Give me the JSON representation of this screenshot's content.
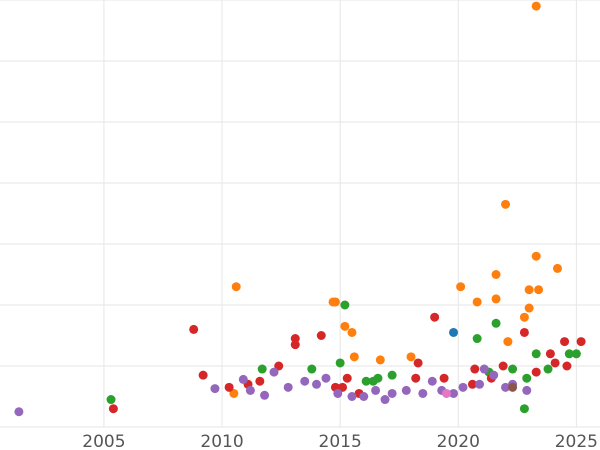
{
  "chart_data": {
    "type": "scatter",
    "title": "",
    "xlabel": "",
    "ylabel": "",
    "xlim": [
      2000.6,
      2026.0
    ],
    "ylim": [
      0,
      7
    ],
    "grid": true,
    "legend": "none",
    "x_ticks": [
      2005,
      2010,
      2015,
      2020,
      2025
    ],
    "x_tick_labels": [
      "2005",
      "2010",
      "2015",
      "2020",
      "2025"
    ],
    "y_ticks": [
      0,
      1,
      2,
      3,
      4,
      5,
      6,
      7
    ],
    "y_tick_labels": [],
    "series": [
      {
        "color": "#ff7f0e",
        "points": [
          [
            2010.5,
            0.55
          ],
          [
            2010.6,
            2.3
          ],
          [
            2014.7,
            2.05
          ],
          [
            2014.8,
            2.05
          ],
          [
            2015.2,
            1.65
          ],
          [
            2015.5,
            1.55
          ],
          [
            2015.6,
            1.15
          ],
          [
            2016.7,
            1.1
          ],
          [
            2018.0,
            1.15
          ],
          [
            2020.1,
            2.3
          ],
          [
            2020.8,
            2.05
          ],
          [
            2021.6,
            2.5
          ],
          [
            2021.6,
            2.1
          ],
          [
            2022.0,
            3.65
          ],
          [
            2022.1,
            1.4
          ],
          [
            2022.8,
            1.8
          ],
          [
            2023.0,
            2.25
          ],
          [
            2023.0,
            1.95
          ],
          [
            2023.3,
            2.8
          ],
          [
            2023.3,
            6.9
          ],
          [
            2023.4,
            2.25
          ],
          [
            2024.2,
            2.6
          ]
        ]
      },
      {
        "color": "#2ca02c",
        "points": [
          [
            2005.3,
            0.45
          ],
          [
            2011.7,
            0.95
          ],
          [
            2013.8,
            0.95
          ],
          [
            2015.0,
            1.05
          ],
          [
            2015.2,
            2.0
          ],
          [
            2016.1,
            0.75
          ],
          [
            2016.4,
            0.75
          ],
          [
            2016.6,
            0.8
          ],
          [
            2017.2,
            0.85
          ],
          [
            2020.8,
            1.45
          ],
          [
            2021.3,
            0.9
          ],
          [
            2021.6,
            1.7
          ],
          [
            2022.3,
            0.95
          ],
          [
            2022.8,
            0.3
          ],
          [
            2022.9,
            0.8
          ],
          [
            2023.3,
            1.2
          ],
          [
            2023.8,
            0.95
          ],
          [
            2024.7,
            1.2
          ],
          [
            2025.0,
            1.2
          ]
        ]
      },
      {
        "color": "#d62728",
        "points": [
          [
            2005.4,
            0.3
          ],
          [
            2008.8,
            1.6
          ],
          [
            2009.2,
            0.85
          ],
          [
            2010.3,
            0.65
          ],
          [
            2011.1,
            0.7
          ],
          [
            2011.6,
            0.75
          ],
          [
            2012.4,
            1.0
          ],
          [
            2013.1,
            1.35
          ],
          [
            2013.1,
            1.45
          ],
          [
            2014.2,
            1.5
          ],
          [
            2014.8,
            0.65
          ],
          [
            2015.1,
            0.65
          ],
          [
            2015.3,
            0.8
          ],
          [
            2015.8,
            0.55
          ],
          [
            2018.2,
            0.8
          ],
          [
            2018.3,
            1.05
          ],
          [
            2019.0,
            1.8
          ],
          [
            2019.4,
            0.8
          ],
          [
            2020.6,
            0.7
          ],
          [
            2020.7,
            0.95
          ],
          [
            2021.4,
            0.8
          ],
          [
            2021.9,
            1.0
          ],
          [
            2022.8,
            1.55
          ],
          [
            2023.3,
            0.9
          ],
          [
            2023.9,
            1.2
          ],
          [
            2024.1,
            1.05
          ],
          [
            2024.5,
            1.4
          ],
          [
            2024.6,
            1.0
          ],
          [
            2025.2,
            1.4
          ]
        ]
      },
      {
        "color": "#1f77b4",
        "points": [
          [
            2019.8,
            1.55
          ]
        ]
      },
      {
        "color": "#9467bd",
        "points": [
          [
            2001.4,
            0.25
          ],
          [
            2009.7,
            0.63
          ],
          [
            2010.9,
            0.78
          ],
          [
            2011.2,
            0.6
          ],
          [
            2011.8,
            0.52
          ],
          [
            2012.2,
            0.9
          ],
          [
            2012.8,
            0.65
          ],
          [
            2013.5,
            0.75
          ],
          [
            2014.0,
            0.7
          ],
          [
            2014.4,
            0.8
          ],
          [
            2014.9,
            0.55
          ],
          [
            2015.5,
            0.5
          ],
          [
            2016.0,
            0.5
          ],
          [
            2016.5,
            0.6
          ],
          [
            2016.9,
            0.45
          ],
          [
            2017.2,
            0.55
          ],
          [
            2017.8,
            0.6
          ],
          [
            2018.5,
            0.55
          ],
          [
            2018.9,
            0.75
          ],
          [
            2019.3,
            0.6
          ],
          [
            2019.8,
            0.55
          ],
          [
            2020.2,
            0.65
          ],
          [
            2020.9,
            0.7
          ],
          [
            2021.1,
            0.95
          ],
          [
            2021.5,
            0.85
          ],
          [
            2022.0,
            0.65
          ],
          [
            2022.3,
            0.7
          ],
          [
            2022.9,
            0.6
          ]
        ]
      },
      {
        "color": "#e377c2",
        "points": [
          [
            2019.5,
            0.55
          ]
        ]
      },
      {
        "color": "#8c564b",
        "points": [
          [
            2022.3,
            0.65
          ]
        ]
      }
    ]
  }
}
